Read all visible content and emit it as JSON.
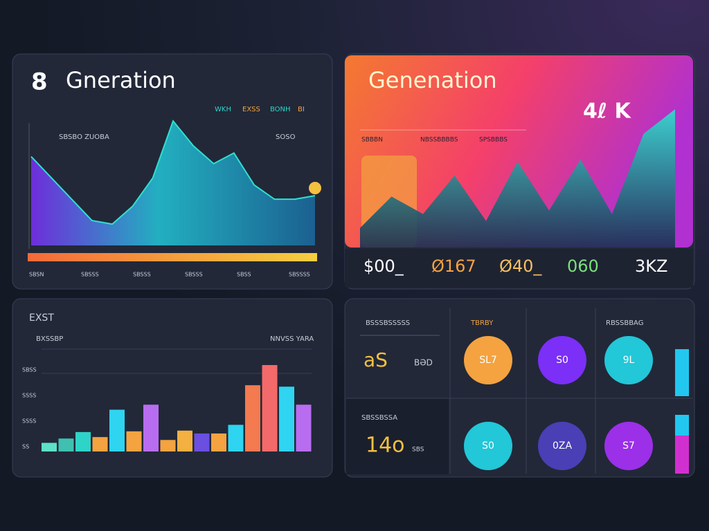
{
  "panel1": {
    "number": "8",
    "title": "Gneration",
    "legend": [
      "WKH",
      "EXSS",
      "BONH",
      "BI"
    ],
    "legend_colors": [
      "#2fd4c8",
      "#f4a340",
      "#2fd4c8",
      "#f4a340"
    ],
    "label_left": "SBSBO ZUOBA",
    "label_right": "SOSO",
    "x_labels": [
      "SBSN",
      "SBSSS",
      "SBSSS",
      "SBSSS",
      "SBSS",
      "SBSSSS"
    ],
    "values": [
      125,
      95,
      65,
      35,
      30,
      55,
      95,
      175,
      140,
      115,
      130,
      85,
      65,
      65,
      70
    ]
  },
  "panel2": {
    "title": "Genenation",
    "big": "4ℓ K",
    "labels": [
      "SBBBN",
      "NBSSBBBBS",
      "SPSBBBS"
    ],
    "values": [
      28,
      73,
      48,
      103,
      38,
      123,
      53,
      126,
      48,
      163,
      198
    ],
    "stats": [
      "$00_",
      "Ø167",
      "Ø40_",
      "060",
      "3KZ"
    ],
    "stat_colors": [
      "#ffffff",
      "#f4a340",
      "#f4c060",
      "#7be07b",
      "#ffffff"
    ]
  },
  "panel3": {
    "title": "EXST",
    "subtitle": "BXSSBP",
    "label_right": "NNVSS YARA",
    "y_labels": [
      "SBSS",
      "SSSS",
      "SSSS",
      "SS"
    ],
    "values": [
      12,
      18,
      27,
      20,
      58,
      28,
      65,
      16,
      29,
      25,
      25,
      37,
      92,
      120,
      90,
      65
    ],
    "colors": [
      "#5ee0c8",
      "#3fc0b0",
      "#2fd4c8",
      "#f4a340",
      "#2fd4f0",
      "#f4a340",
      "#b86df0",
      "#f4a340",
      "#f4b040",
      "#6a4fe0",
      "#f4a340",
      "#2fd4f0",
      "#f47a50",
      "#f46a6a",
      "#2fd4f0",
      "#b86df0"
    ]
  },
  "panel4": {
    "header_left": "BSSSBSSSSS",
    "header_mid": "TBRBY",
    "header_right": "RBSSBBAG",
    "big1": "aS",
    "small1": "BƏD",
    "label2": "SBSSBSSA",
    "big2": "14o",
    "small2": "SBS",
    "circles": [
      {
        "label": "SL7",
        "color": "#f4a340"
      },
      {
        "label": "S0",
        "color": "#7b2ff7"
      },
      {
        "label": "9L",
        "color": "#22c7d8"
      },
      {
        "label": "S0",
        "color": "#22c7d8"
      },
      {
        "label": "0ZA",
        "color": "#4a3fb5"
      },
      {
        "label": "S7",
        "color": "#9b30e8"
      }
    ]
  }
}
